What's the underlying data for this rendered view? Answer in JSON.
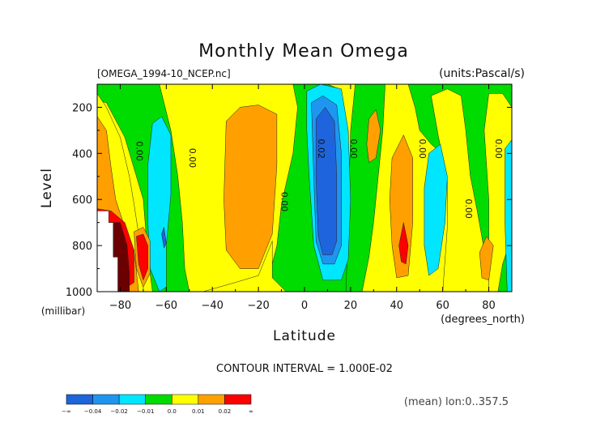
{
  "chart_data": {
    "type": "heatmap",
    "title": "Monthly Mean Omega",
    "source_label": "[OMEGA_1994-10_NCEP.nc]",
    "units_label": "(units:Pascal/s)",
    "xlabel": "Latitude",
    "x_unit_label": "(degrees_north)",
    "ylabel": "Level",
    "y_unit_label": "(millibar)",
    "xlim": [
      -90,
      90
    ],
    "ylim": [
      1000,
      100
    ],
    "x_ticks": [
      -80,
      -60,
      -40,
      -20,
      0,
      20,
      40,
      60,
      80
    ],
    "y_ticks": [
      200,
      400,
      600,
      800,
      1000
    ],
    "contour_interval_label": "CONTOUR INTERVAL = 1.000E-02",
    "mean_label": "(mean) lon:0..357.5",
    "contour_labels": [
      {
        "text": "0.00",
        "lat": -73,
        "lev": 390
      },
      {
        "text": "0.00",
        "lat": -50,
        "lev": 420
      },
      {
        "text": "0.00",
        "lat": -10,
        "lev": 610
      },
      {
        "text": "0.02",
        "lat": 6,
        "lev": 380
      },
      {
        "text": "0.00",
        "lat": 20,
        "lev": 380
      },
      {
        "text": "0.00",
        "lat": 50,
        "lev": 380
      },
      {
        "text": "0.00",
        "lat": 70,
        "lev": 640
      },
      {
        "text": "0.00",
        "lat": 83,
        "lev": 380
      }
    ],
    "legend": {
      "colors": [
        "#1e64dc",
        "#1e96f0",
        "#00e6ff",
        "#00dc00",
        "#ffff00",
        "#ffa000",
        "#ff0000"
      ],
      "labels": [
        "-∞",
        "-0.04",
        "-0.02",
        "-0.01",
        "0.0",
        "0.01",
        "0.02",
        "∞"
      ]
    },
    "regions": [
      {
        "fill": "#ffff00",
        "lat_min": -90,
        "lat_max": 90,
        "lev_min": 100,
        "lev_max": 1000
      },
      {
        "fill": "#00dc00",
        "poly": [
          [
            -90,
            100
          ],
          [
            -63,
            100
          ],
          [
            -58,
            300
          ],
          [
            -55,
            500
          ],
          [
            -53,
            700
          ],
          [
            -52,
            900
          ],
          [
            -50,
            1000
          ],
          [
            -66,
            1000
          ],
          [
            -68,
            850
          ],
          [
            -70,
            600
          ],
          [
            -78,
            330
          ],
          [
            -86,
            180
          ],
          [
            -90,
            170
          ]
        ]
      },
      {
        "fill": "#ffff00",
        "poly": [
          [
            -90,
            140
          ],
          [
            -86,
            200
          ],
          [
            -80,
            330
          ],
          [
            -76,
            500
          ],
          [
            -74,
            620
          ],
          [
            -72,
            750
          ],
          [
            -70,
            900
          ],
          [
            -70,
            1000
          ],
          [
            -90,
            1000
          ]
        ]
      },
      {
        "fill": "#00dc00",
        "poly": [
          [
            -30,
            100
          ],
          [
            -5,
            100
          ],
          [
            -3,
            200
          ],
          [
            -5,
            400
          ],
          [
            -10,
            620
          ],
          [
            -12,
            800
          ],
          [
            -16,
            960
          ],
          [
            -8,
            1000
          ],
          [
            25,
            1000
          ],
          [
            20,
            880
          ],
          [
            20,
            700
          ],
          [
            20,
            500
          ],
          [
            18,
            300
          ],
          [
            15,
            120
          ],
          [
            10,
            100
          ],
          [
            -30,
            100
          ]
        ]
      },
      {
        "fill": "#ffff00",
        "poly": [
          [
            -8,
            1000
          ],
          [
            -14,
            940
          ],
          [
            -14,
            850
          ],
          [
            -14,
            780
          ],
          [
            -20,
            930
          ],
          [
            -30,
            960
          ],
          [
            -44,
            1000
          ]
        ]
      },
      {
        "fill": "#00dc00",
        "poly": [
          [
            22,
            100
          ],
          [
            35,
            100
          ],
          [
            34,
            300
          ],
          [
            32,
            500
          ],
          [
            30,
            700
          ],
          [
            28,
            850
          ],
          [
            25,
            1000
          ],
          [
            18,
            1000
          ],
          [
            19,
            700
          ],
          [
            20,
            300
          ]
        ]
      },
      {
        "fill": "#00dc00",
        "poly": [
          [
            45,
            100
          ],
          [
            90,
            100
          ],
          [
            90,
            1000
          ],
          [
            73,
            1000
          ],
          [
            72,
            870
          ],
          [
            70,
            720
          ],
          [
            68,
            560
          ],
          [
            62,
            420
          ],
          [
            55,
            360
          ],
          [
            50,
            300
          ],
          [
            48,
            200
          ]
        ]
      },
      {
        "fill": "#ffff00",
        "poly": [
          [
            55,
            150
          ],
          [
            62,
            120
          ],
          [
            68,
            150
          ],
          [
            70,
            300
          ],
          [
            72,
            500
          ],
          [
            75,
            650
          ],
          [
            78,
            820
          ],
          [
            82,
            1000
          ],
          [
            60,
            1000
          ],
          [
            62,
            720
          ],
          [
            62,
            520
          ],
          [
            58,
            320
          ]
        ]
      },
      {
        "fill": "#ffff00",
        "poly": [
          [
            80,
            140
          ],
          [
            86,
            140
          ],
          [
            90,
            200
          ],
          [
            90,
            760
          ],
          [
            86,
            880
          ],
          [
            84,
            1000
          ],
          [
            80,
            1000
          ],
          [
            80,
            600
          ],
          [
            78,
            300
          ]
        ]
      },
      {
        "fill": "#00e6ff",
        "poly": [
          [
            -66,
            270
          ],
          [
            -62,
            240
          ],
          [
            -58,
            320
          ],
          [
            -58,
            580
          ],
          [
            -60,
            800
          ],
          [
            -60,
            980
          ],
          [
            -63,
            1000
          ],
          [
            -67,
            900
          ],
          [
            -68,
            700
          ],
          [
            -68,
            450
          ]
        ]
      },
      {
        "fill": "#00e6ff",
        "poly": [
          [
            1,
            130
          ],
          [
            7,
            100
          ],
          [
            16,
            120
          ],
          [
            19,
            300
          ],
          [
            20,
            600
          ],
          [
            19,
            860
          ],
          [
            16,
            950
          ],
          [
            8,
            950
          ],
          [
            4,
            800
          ],
          [
            2,
            500
          ],
          [
            1,
            300
          ]
        ]
      },
      {
        "fill": "#1e96f0",
        "poly": [
          [
            3,
            180
          ],
          [
            8,
            150
          ],
          [
            14,
            190
          ],
          [
            16,
            400
          ],
          [
            16,
            800
          ],
          [
            13,
            880
          ],
          [
            8,
            880
          ],
          [
            5,
            780
          ],
          [
            4,
            500
          ]
        ]
      },
      {
        "fill": "#1e64dc",
        "poly": [
          [
            5,
            250
          ],
          [
            9,
            200
          ],
          [
            13,
            260
          ],
          [
            14,
            500
          ],
          [
            14,
            780
          ],
          [
            12,
            840
          ],
          [
            8,
            840
          ],
          [
            6,
            760
          ],
          [
            5,
            500
          ]
        ]
      },
      {
        "fill": "#00e6ff",
        "poly": [
          [
            54,
            400
          ],
          [
            59,
            360
          ],
          [
            62,
            500
          ],
          [
            61,
            700
          ],
          [
            58,
            900
          ],
          [
            54,
            930
          ],
          [
            52,
            800
          ],
          [
            52,
            550
          ]
        ]
      },
      {
        "fill": "#00e6ff",
        "poly": [
          [
            87,
            380
          ],
          [
            90,
            340
          ],
          [
            90,
            1000
          ],
          [
            88,
            1000
          ],
          [
            87,
            700
          ]
        ]
      },
      {
        "fill": "#ffa000",
        "poly": [
          [
            -90,
            240
          ],
          [
            -86,
            300
          ],
          [
            -84,
            460
          ],
          [
            -82,
            600
          ],
          [
            -78,
            720
          ],
          [
            -74,
            820
          ],
          [
            -72,
            1000
          ],
          [
            -90,
            1000
          ]
        ]
      },
      {
        "fill": "#ffa000",
        "poly": [
          [
            -34,
            260
          ],
          [
            -28,
            200
          ],
          [
            -20,
            190
          ],
          [
            -12,
            230
          ],
          [
            -12,
            450
          ],
          [
            -14,
            750
          ],
          [
            -20,
            900
          ],
          [
            -28,
            900
          ],
          [
            -34,
            820
          ],
          [
            -35,
            600
          ]
        ]
      },
      {
        "fill": "#ffa000",
        "poly": [
          [
            28,
            250
          ],
          [
            31,
            210
          ],
          [
            33,
            300
          ],
          [
            31,
            420
          ],
          [
            28,
            440
          ],
          [
            27,
            360
          ]
        ]
      },
      {
        "fill": "#ffa000",
        "poly": [
          [
            38,
            420
          ],
          [
            43,
            320
          ],
          [
            47,
            420
          ],
          [
            47,
            700
          ],
          [
            45,
            930
          ],
          [
            40,
            940
          ],
          [
            38,
            800
          ],
          [
            37,
            600
          ]
        ]
      },
      {
        "fill": "#ffa000",
        "poly": [
          [
            76,
            830
          ],
          [
            79,
            760
          ],
          [
            82,
            800
          ],
          [
            80,
            950
          ],
          [
            77,
            940
          ]
        ]
      },
      {
        "fill": "#ff0000",
        "poly": [
          [
            -90,
            640
          ],
          [
            -84,
            650
          ],
          [
            -78,
            700
          ],
          [
            -74,
            820
          ],
          [
            -74,
            960
          ],
          [
            -80,
            1000
          ],
          [
            -90,
            1000
          ]
        ]
      },
      {
        "fill": "#ffa000",
        "poly": [
          [
            -74,
            740
          ],
          [
            -70,
            720
          ],
          [
            -67,
            780
          ],
          [
            -67,
            920
          ],
          [
            -70,
            980
          ],
          [
            -73,
            900
          ]
        ]
      },
      {
        "fill": "#ff0000",
        "poly": [
          [
            -73,
            760
          ],
          [
            -70,
            750
          ],
          [
            -68,
            800
          ],
          [
            -68,
            900
          ],
          [
            -70,
            950
          ],
          [
            -72,
            880
          ]
        ]
      },
      {
        "fill": "#ff0000",
        "poly": [
          [
            41,
            800
          ],
          [
            43,
            700
          ],
          [
            45,
            800
          ],
          [
            44,
            880
          ],
          [
            42,
            870
          ]
        ]
      },
      {
        "fill": "#ffffff",
        "poly": [
          [
            -90,
            650
          ],
          [
            -85,
            650
          ],
          [
            -85,
            700
          ],
          [
            -83,
            700
          ],
          [
            -83,
            850
          ],
          [
            -81,
            850
          ],
          [
            -81,
            1000
          ],
          [
            -90,
            1000
          ]
        ]
      },
      {
        "fill": "#6a0000",
        "poly": [
          [
            -85,
            700
          ],
          [
            -80,
            700
          ],
          [
            -77,
            800
          ],
          [
            -76,
            920
          ],
          [
            -76,
            1000
          ],
          [
            -81,
            1000
          ],
          [
            -81,
            850
          ],
          [
            -83,
            850
          ],
          [
            -83,
            700
          ]
        ]
      },
      {
        "fill": "#1e64dc",
        "poly": [
          [
            -62,
            750
          ],
          [
            -61,
            720
          ],
          [
            -60,
            790
          ],
          [
            -61,
            810
          ]
        ]
      }
    ]
  }
}
